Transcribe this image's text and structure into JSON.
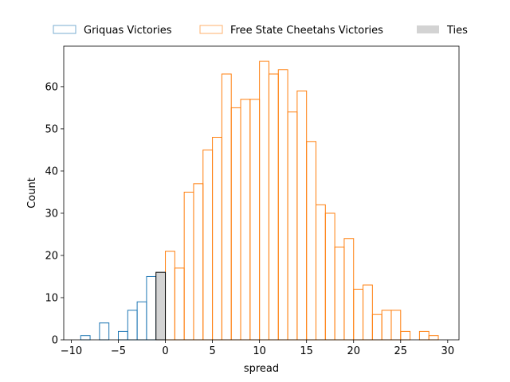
{
  "chart_data": {
    "type": "bar",
    "xlabel": "spread",
    "ylabel": "Count",
    "xlim": [
      -10.8,
      31.2
    ],
    "ylim": [
      0,
      69.6
    ],
    "xticks": [
      -10,
      -5,
      0,
      5,
      10,
      15,
      20,
      25,
      30
    ],
    "xtick_labels": [
      "−10",
      "−5",
      "0",
      "5",
      "10",
      "15",
      "20",
      "25",
      "30"
    ],
    "yticks": [
      0,
      10,
      20,
      30,
      40,
      50,
      60
    ],
    "ytick_labels": [
      "0",
      "10",
      "20",
      "30",
      "40",
      "50",
      "60"
    ],
    "bin_width": 1,
    "legend_position": "top (outside plot, horizontal)",
    "series": [
      {
        "name": "Griquas Victories",
        "style": "step-outline",
        "color": "#1f77b4",
        "bins": [
          {
            "x": -9,
            "count": 1
          },
          {
            "x": -8,
            "count": 0
          },
          {
            "x": -7,
            "count": 4
          },
          {
            "x": -6,
            "count": 0
          },
          {
            "x": -5,
            "count": 2
          },
          {
            "x": -4,
            "count": 7
          },
          {
            "x": -3,
            "count": 9
          },
          {
            "x": -2,
            "count": 15
          }
        ]
      },
      {
        "name": "Free State Cheetahs Victories",
        "style": "step-outline",
        "color": "#ff7f0e",
        "bins": [
          {
            "x": 0,
            "count": 21
          },
          {
            "x": 1,
            "count": 17
          },
          {
            "x": 2,
            "count": 35
          },
          {
            "x": 3,
            "count": 37
          },
          {
            "x": 4,
            "count": 45
          },
          {
            "x": 5,
            "count": 48
          },
          {
            "x": 6,
            "count": 63
          },
          {
            "x": 7,
            "count": 55
          },
          {
            "x": 8,
            "count": 57
          },
          {
            "x": 9,
            "count": 57
          },
          {
            "x": 10,
            "count": 66
          },
          {
            "x": 11,
            "count": 63
          },
          {
            "x": 12,
            "count": 64
          },
          {
            "x": 13,
            "count": 54
          },
          {
            "x": 14,
            "count": 59
          },
          {
            "x": 15,
            "count": 47
          },
          {
            "x": 16,
            "count": 32
          },
          {
            "x": 17,
            "count": 30
          },
          {
            "x": 18,
            "count": 22
          },
          {
            "x": 19,
            "count": 24
          },
          {
            "x": 20,
            "count": 12
          },
          {
            "x": 21,
            "count": 13
          },
          {
            "x": 22,
            "count": 6
          },
          {
            "x": 23,
            "count": 7
          },
          {
            "x": 24,
            "count": 7
          },
          {
            "x": 25,
            "count": 2
          },
          {
            "x": 26,
            "count": 0
          },
          {
            "x": 27,
            "count": 2
          },
          {
            "x": 28,
            "count": 1
          }
        ]
      },
      {
        "name": "Ties",
        "style": "filled",
        "color": "#d3d3d3",
        "bins": [
          {
            "x": -1,
            "count": 16
          }
        ]
      }
    ]
  }
}
